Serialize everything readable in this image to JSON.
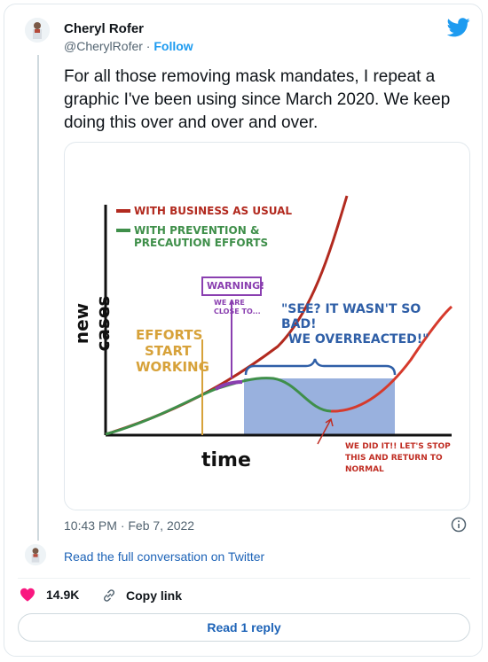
{
  "author": {
    "name": "Cheryl Rofer",
    "handle": "@CherylRofer",
    "separator": "·",
    "follow_label": "Follow"
  },
  "icons": {
    "logo": "twitter-bird-icon",
    "avatar": "avatar-icon",
    "info": "info-icon",
    "heart": "heart-icon",
    "link": "link-icon"
  },
  "tweet": {
    "text": "For all those removing mask mandates, I repeat a graphic I've been using since March 2020. We keep doing this over and over and over.",
    "timestamp": "10:43 PM · Feb 7, 2022"
  },
  "graphic": {
    "legend_business": "WITH BUSINESS AS USUAL",
    "legend_prevention_1": "WITH PREVENTION &",
    "legend_prevention_2": "PRECAUTION EFFORTS",
    "ylabel": "new cases",
    "xlabel": "time",
    "warning": "WARNING!",
    "close_1": "WE ARE",
    "close_2": "CLOSE TO...",
    "see_1": "\"SEE? IT WASN'T SO",
    "see_2": "BAD!",
    "see_3": "WE OVERREACTED!\"",
    "efforts_1": "EFFORTS",
    "efforts_2": "START",
    "efforts_3": "WORKING",
    "didit_1": "WE DID IT!! LET'S STOP",
    "didit_2": "THIS AND RETURN TO",
    "didit_3": "NORMAL",
    "colors": {
      "business": "#b22a1f",
      "prevention": "#3f8f4a",
      "warning": "#8a3fb0",
      "efforts": "#d7a23a",
      "shade": "#7f9ed6",
      "annotation": "#2f5fa7"
    }
  },
  "convo_link": "Read the full conversation on Twitter",
  "actions": {
    "likes": "14.9K",
    "copy_link": "Copy link",
    "read_reply": "Read 1 reply"
  },
  "colors": {
    "accent": "#1d9bf0",
    "like": "#f91880"
  }
}
